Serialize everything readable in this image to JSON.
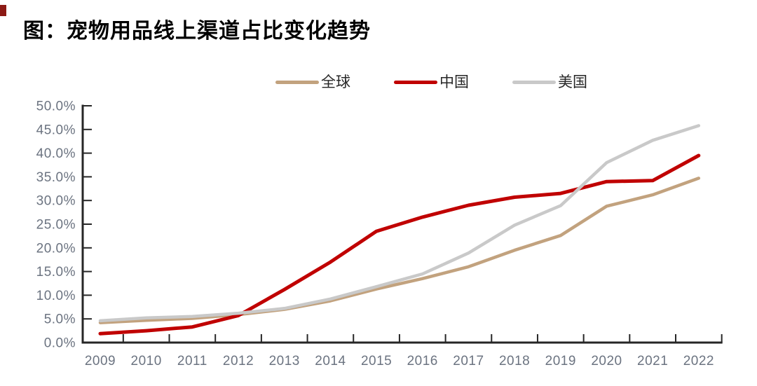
{
  "page": {
    "title": "图：宠物用品线上渠道占比变化趋势"
  },
  "chart_data": {
    "type": "line",
    "title": "图：宠物用品线上渠道占比变化趋势",
    "x": [
      "2009",
      "2010",
      "2011",
      "2012",
      "2013",
      "2014",
      "2015",
      "2016",
      "2017",
      "2018",
      "2019",
      "2020",
      "2021",
      "2022"
    ],
    "series": [
      {
        "key": "global",
        "name": "全球",
        "color": "#c2a27e",
        "values": [
          4.2,
          4.7,
          5.1,
          5.9,
          7.0,
          8.8,
          11.3,
          13.5,
          16.0,
          19.5,
          22.6,
          28.8,
          31.2,
          34.7
        ]
      },
      {
        "key": "china",
        "name": "中国",
        "color": "#c00000",
        "values": [
          1.9,
          2.5,
          3.3,
          5.7,
          11.2,
          17.0,
          23.5,
          26.5,
          29.0,
          30.7,
          31.5,
          34.0,
          34.2,
          39.5
        ]
      },
      {
        "key": "usa",
        "name": "美国",
        "color": "#c9c9c9",
        "values": [
          4.6,
          5.2,
          5.5,
          6.2,
          7.2,
          9.2,
          11.8,
          14.5,
          18.9,
          24.8,
          28.9,
          38.0,
          42.7,
          45.8
        ]
      }
    ],
    "xlabel": "",
    "ylabel": "",
    "ylim": [
      0,
      50
    ],
    "y_tick_step": 5,
    "y_tick_labels": [
      "0.0%",
      "5.0%",
      "10.0%",
      "15.0%",
      "20.0%",
      "25.0%",
      "30.0%",
      "35.0%",
      "40.0%",
      "45.0%",
      "50.0%"
    ],
    "grid": false,
    "legend_position": "top-center",
    "axis_color": "#262626",
    "tick_label_color": "#6b7380"
  }
}
